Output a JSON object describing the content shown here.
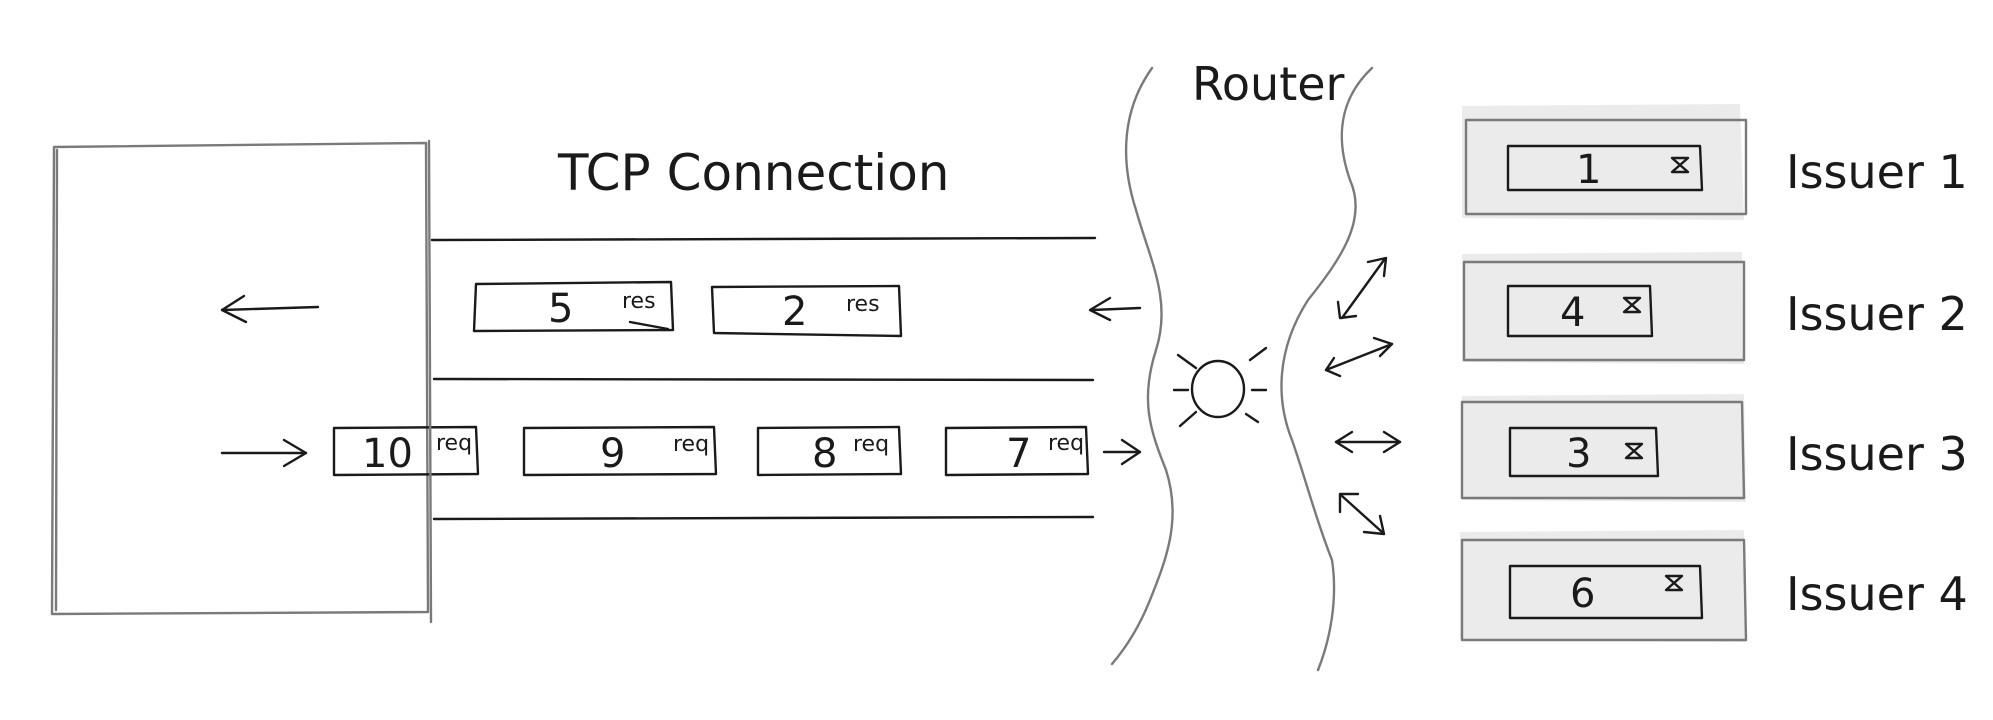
{
  "title": "TCP Connection",
  "router_label": "Router",
  "response_packets": [
    {
      "number": "5",
      "tag": "res"
    },
    {
      "number": "2",
      "tag": "res"
    }
  ],
  "request_packets": [
    {
      "number": "10",
      "tag": "req"
    },
    {
      "number": "9",
      "tag": "req"
    },
    {
      "number": "8",
      "tag": "req"
    },
    {
      "number": "7",
      "tag": "req"
    }
  ],
  "issuers": [
    {
      "label": "Issuer 1",
      "job": "1"
    },
    {
      "label": "Issuer 2",
      "job": "4"
    },
    {
      "label": "Issuer 3",
      "job": "3"
    },
    {
      "label": "Issuer 4",
      "job": "6"
    }
  ],
  "colors": {
    "ink": "#1a1a1a",
    "grey_stroke": "#7a7a7a",
    "issuer_fill": "#ebebeb"
  },
  "icons": {
    "hourglass": "hourglass-icon",
    "router": "router-glow-icon"
  }
}
